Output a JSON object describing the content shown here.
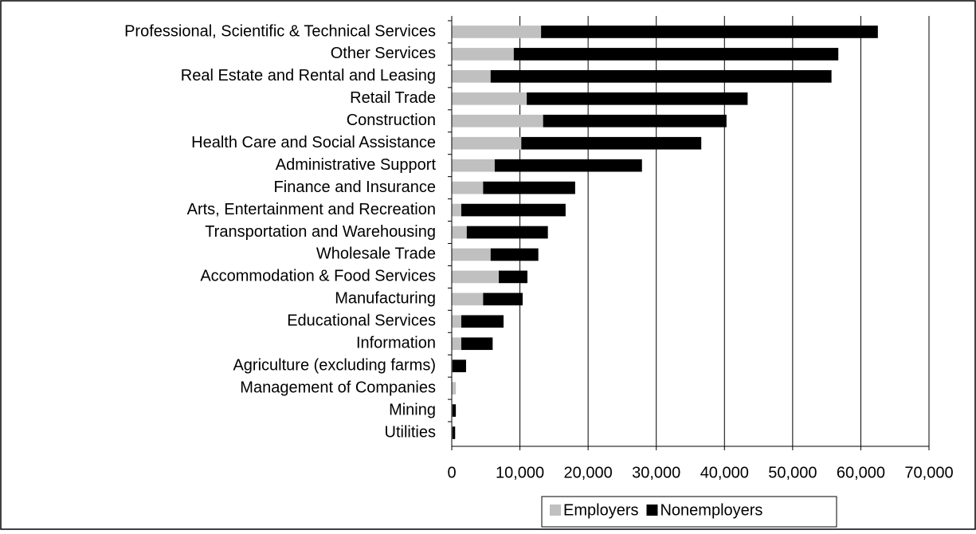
{
  "chart_data": {
    "type": "stacked-barh",
    "categories": [
      "Professional, Scientific & Technical Services",
      "Other Services",
      "Real Estate and Rental and Leasing",
      "Retail Trade",
      "Construction",
      "Health Care and Social Assistance",
      "Administrative Support",
      "Finance and Insurance",
      "Arts, Entertainment and Recreation",
      "Transportation and Warehousing",
      "Wholesale Trade",
      "Accommodation & Food Services",
      "Manufacturing",
      "Educational Services",
      "Information",
      "Agriculture (excluding farms)",
      "Management of Companies",
      "Mining",
      "Utilities"
    ],
    "series": [
      {
        "name": "Employers",
        "color": "#c0c0c0",
        "values": [
          13100,
          9100,
          5700,
          11000,
          13400,
          10200,
          6300,
          4600,
          1400,
          2200,
          5700,
          6900,
          4600,
          1400,
          1400,
          100,
          600,
          100,
          100
        ]
      },
      {
        "name": "Nonemployers",
        "color": "#000000",
        "values": [
          49400,
          47600,
          50000,
          32400,
          26900,
          26400,
          21600,
          13500,
          15300,
          11900,
          7000,
          4200,
          5800,
          6200,
          4600,
          2000,
          0,
          500,
          400
        ]
      }
    ],
    "xlim": [
      0,
      70000
    ],
    "xticks": [
      0,
      {
        "value": 10000,
        "label": "10,000"
      },
      {
        "value": 20000,
        "label": "20,000"
      },
      {
        "value": 30000,
        "label": "30,000"
      },
      {
        "value": 40000,
        "label": "40,000"
      },
      {
        "value": 50000,
        "label": "50,000"
      },
      {
        "value": 60000,
        "label": "60,000"
      },
      {
        "value": 70000,
        "label": "70,000"
      }
    ],
    "grid": true,
    "legend": "bottom"
  }
}
